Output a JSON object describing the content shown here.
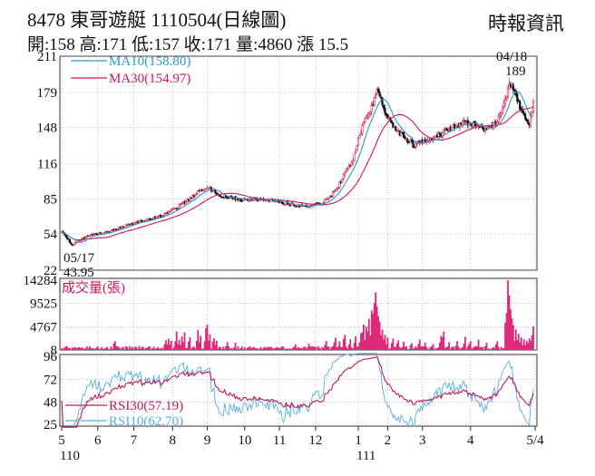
{
  "header": {
    "title": "8478  東哥遊艇 1110504(日線圖)",
    "stats": "開:158 高:171 低:157 收:171 量:4860 漲 15.5",
    "source": "時報資訊"
  },
  "colors": {
    "up": "#d9264e",
    "down": "#111111",
    "ma10": "#2a9ad0",
    "ma30": "#d4145a",
    "volume": "#e0287a",
    "rsi30": "#c2185b",
    "rsi10": "#5aaee0",
    "grid": "#9a9a9a"
  },
  "chart_data": {
    "type": "candlestick",
    "x_tick_labels": [
      "5",
      "6",
      "7",
      "8",
      "9",
      "10",
      "11",
      "12",
      "1",
      "2",
      "3",
      "4",
      "5/4"
    ],
    "x_year_labels": [
      "110",
      "111"
    ],
    "price": {
      "y_ticks": [
        211,
        179,
        148,
        116,
        85,
        54,
        22
      ],
      "ylim": [
        22,
        211
      ],
      "legend": [
        {
          "label": "MA10(158.80)",
          "color": "#2a9ad0"
        },
        {
          "label": "MA30(154.97)",
          "color": "#d4145a"
        }
      ],
      "annotations": [
        {
          "date": "05/17",
          "value": "43.95",
          "text": [
            "05/17",
            "43.95"
          ]
        },
        {
          "date": "04/18",
          "value": "189",
          "text": [
            "04/18",
            "189"
          ]
        }
      ],
      "anchors": [
        [
          0,
          56
        ],
        [
          8,
          44
        ],
        [
          18,
          52
        ],
        [
          35,
          56
        ],
        [
          55,
          64
        ],
        [
          75,
          70
        ],
        [
          90,
          80
        ],
        [
          102,
          91
        ],
        [
          110,
          95
        ],
        [
          118,
          88
        ],
        [
          135,
          84
        ],
        [
          150,
          85
        ],
        [
          162,
          82
        ],
        [
          172,
          80
        ],
        [
          182,
          78
        ],
        [
          195,
          81
        ],
        [
          205,
          92
        ],
        [
          212,
          108
        ],
        [
          218,
          118
        ],
        [
          225,
          150
        ],
        [
          232,
          165
        ],
        [
          236,
          183
        ],
        [
          242,
          160
        ],
        [
          248,
          150
        ],
        [
          256,
          140
        ],
        [
          264,
          132
        ],
        [
          272,
          137
        ],
        [
          280,
          140
        ],
        [
          290,
          146
        ],
        [
          300,
          152
        ],
        [
          310,
          150
        ],
        [
          318,
          145
        ],
        [
          326,
          153
        ],
        [
          331,
          168
        ],
        [
          335,
          189
        ],
        [
          339,
          178
        ],
        [
          345,
          160
        ],
        [
          350,
          152
        ],
        [
          353,
          171
        ]
      ]
    },
    "volume": {
      "title": "成交量(張)",
      "y_ticks": [
        14284,
        9525,
        4767,
        8
      ],
      "ylim": [
        8,
        14284
      ],
      "spikes": [
        {
          "i": 40,
          "v": 1800
        },
        {
          "i": 78,
          "v": 2000
        },
        {
          "i": 80,
          "v": 2300
        },
        {
          "i": 82,
          "v": 1900
        },
        {
          "i": 86,
          "v": 3800
        },
        {
          "i": 88,
          "v": 2100
        },
        {
          "i": 90,
          "v": 2800
        },
        {
          "i": 92,
          "v": 3600
        },
        {
          "i": 96,
          "v": 2600
        },
        {
          "i": 102,
          "v": 4100
        },
        {
          "i": 104,
          "v": 2900
        },
        {
          "i": 108,
          "v": 4500
        },
        {
          "i": 109,
          "v": 5200
        },
        {
          "i": 111,
          "v": 3200
        },
        {
          "i": 114,
          "v": 2400
        },
        {
          "i": 116,
          "v": 1900
        },
        {
          "i": 124,
          "v": 1600
        },
        {
          "i": 130,
          "v": 1500
        },
        {
          "i": 175,
          "v": 1200
        },
        {
          "i": 185,
          "v": 1300
        },
        {
          "i": 198,
          "v": 1900
        },
        {
          "i": 205,
          "v": 2500
        },
        {
          "i": 208,
          "v": 1800
        },
        {
          "i": 212,
          "v": 3100
        },
        {
          "i": 216,
          "v": 2200
        },
        {
          "i": 220,
          "v": 2800
        },
        {
          "i": 224,
          "v": 3400
        },
        {
          "i": 226,
          "v": 5200
        },
        {
          "i": 228,
          "v": 4800
        },
        {
          "i": 230,
          "v": 6400
        },
        {
          "i": 232,
          "v": 8100
        },
        {
          "i": 233,
          "v": 7400
        },
        {
          "i": 234,
          "v": 9600
        },
        {
          "i": 235,
          "v": 11800
        },
        {
          "i": 236,
          "v": 8900
        },
        {
          "i": 237,
          "v": 6900
        },
        {
          "i": 238,
          "v": 5800
        },
        {
          "i": 240,
          "v": 4200
        },
        {
          "i": 242,
          "v": 3100
        },
        {
          "i": 244,
          "v": 2600
        },
        {
          "i": 248,
          "v": 2300
        },
        {
          "i": 252,
          "v": 2000
        },
        {
          "i": 256,
          "v": 1700
        },
        {
          "i": 262,
          "v": 1400
        },
        {
          "i": 268,
          "v": 2100
        },
        {
          "i": 272,
          "v": 1500
        },
        {
          "i": 278,
          "v": 1200
        },
        {
          "i": 284,
          "v": 2900
        },
        {
          "i": 286,
          "v": 3800
        },
        {
          "i": 290,
          "v": 1600
        },
        {
          "i": 296,
          "v": 1800
        },
        {
          "i": 302,
          "v": 2700
        },
        {
          "i": 306,
          "v": 1800
        },
        {
          "i": 312,
          "v": 2100
        },
        {
          "i": 318,
          "v": 1500
        },
        {
          "i": 326,
          "v": 1800
        },
        {
          "i": 333,
          "v": 7600
        },
        {
          "i": 334,
          "v": 14284
        },
        {
          "i": 335,
          "v": 11200
        },
        {
          "i": 336,
          "v": 8300
        },
        {
          "i": 337,
          "v": 6500
        },
        {
          "i": 338,
          "v": 5100
        },
        {
          "i": 340,
          "v": 4200
        },
        {
          "i": 342,
          "v": 3300
        },
        {
          "i": 344,
          "v": 2600
        },
        {
          "i": 346,
          "v": 2200
        },
        {
          "i": 348,
          "v": 1900
        },
        {
          "i": 350,
          "v": 2400
        },
        {
          "i": 352,
          "v": 3000
        },
        {
          "i": 353,
          "v": 4860
        }
      ]
    },
    "rsi": {
      "y_ticks": [
        96,
        72,
        48,
        25
      ],
      "ylim": [
        25,
        96
      ],
      "legend": [
        {
          "label": "RSI30(57.19)",
          "color": "#c2185b"
        },
        {
          "label": "RSI10(62.70)",
          "color": "#5aaee0"
        }
      ]
    }
  }
}
